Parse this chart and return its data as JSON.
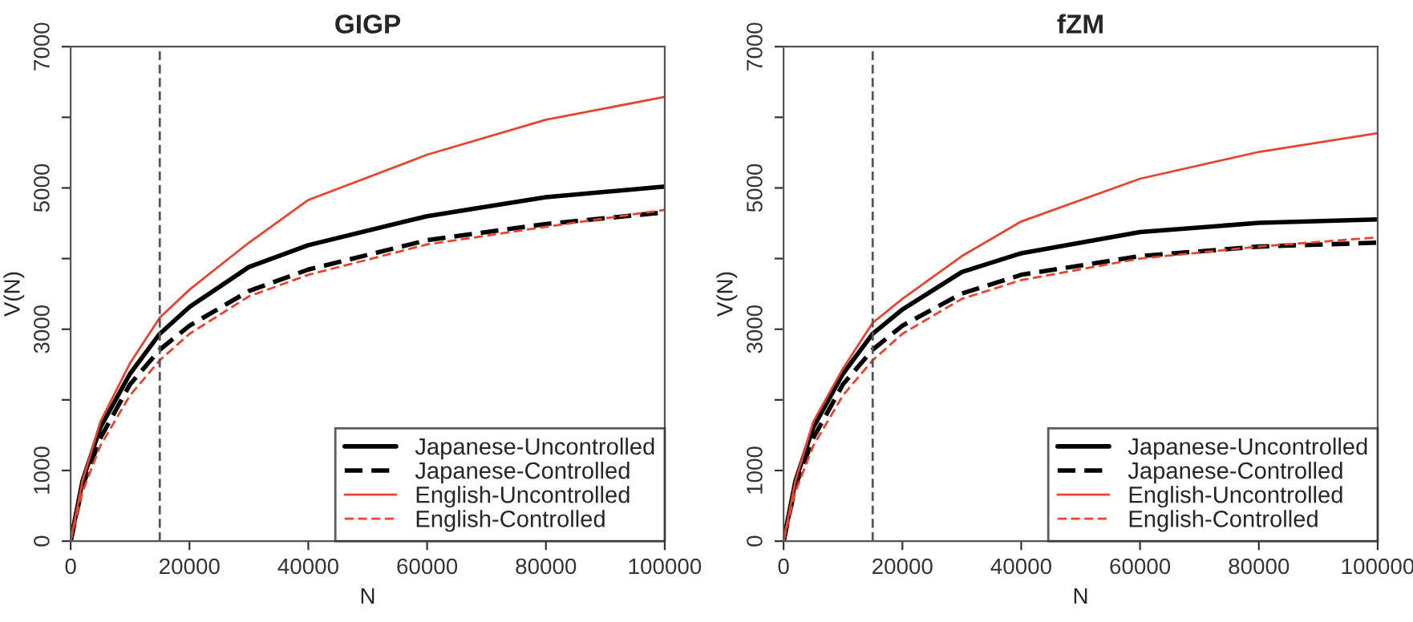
{
  "chart_data": [
    {
      "type": "line",
      "title": "GIGP",
      "xlabel": "N",
      "ylabel": "V(N)",
      "x": [
        0,
        2000,
        5000,
        10000,
        15000,
        20000,
        30000,
        40000,
        60000,
        80000,
        100000
      ],
      "series": [
        {
          "name": "Japanese-Uncontrolled",
          "color": "#000000",
          "line_style": "solid",
          "values": [
            0,
            855,
            1610,
            2370,
            2935,
            3315,
            3880,
            4190,
            4600,
            4870,
            5020
          ]
        },
        {
          "name": "Japanese-Controlled",
          "color": "#000000",
          "line_style": "dashed",
          "values": [
            0,
            780,
            1460,
            2220,
            2710,
            3050,
            3540,
            3845,
            4260,
            4490,
            4655
          ]
        },
        {
          "name": "English-Uncontrolled",
          "color": "#e8432f",
          "line_style": "solid",
          "values": [
            0,
            855,
            1690,
            2520,
            3165,
            3560,
            4225,
            4830,
            5470,
            5965,
            6290
          ]
        },
        {
          "name": "English-Controlled",
          "color": "#e8432f",
          "line_style": "dashed",
          "values": [
            0,
            700,
            1350,
            2065,
            2560,
            2935,
            3465,
            3770,
            4200,
            4450,
            4690
          ]
        }
      ],
      "xlim": [
        0,
        100000
      ],
      "ylim": [
        0,
        7000
      ],
      "xticks": [
        0,
        20000,
        40000,
        60000,
        80000,
        100000
      ],
      "yticks": [
        0,
        1000,
        {
          "value": 2000,
          "label": null
        },
        3000,
        {
          "value": 4000,
          "label": null
        },
        5000,
        {
          "value": 6000,
          "label": null
        },
        7000
      ],
      "ref_lines": [
        {
          "axis": "x",
          "value": 15000,
          "label": null,
          "color": "#555555",
          "line_style": "dashed"
        }
      ],
      "legend": "bottom right",
      "grid": false
    },
    {
      "type": "line",
      "title": "fZM",
      "xlabel": "N",
      "ylabel": "V(N)",
      "x": [
        0,
        2000,
        5000,
        10000,
        15000,
        20000,
        30000,
        40000,
        60000,
        80000,
        100000
      ],
      "series": [
        {
          "name": "Japanese-Uncontrolled",
          "color": "#000000",
          "line_style": "solid",
          "values": [
            0,
            855,
            1610,
            2370,
            2935,
            3280,
            3810,
            4075,
            4375,
            4505,
            4555
          ]
        },
        {
          "name": "Japanese-Controlled",
          "color": "#000000",
          "line_style": "dashed",
          "values": [
            0,
            780,
            1460,
            2220,
            2710,
            3050,
            3505,
            3770,
            4035,
            4170,
            4225
          ]
        },
        {
          "name": "English-Uncontrolled",
          "color": "#e8432f",
          "line_style": "solid",
          "values": [
            0,
            855,
            1690,
            2445,
            3090,
            3430,
            4035,
            4525,
            5130,
            5510,
            5775
          ]
        },
        {
          "name": "English-Controlled",
          "color": "#e8432f",
          "line_style": "dashed",
          "values": [
            0,
            700,
            1350,
            2065,
            2560,
            2935,
            3430,
            3695,
            4000,
            4170,
            4300
          ]
        }
      ],
      "xlim": [
        0,
        100000
      ],
      "ylim": [
        0,
        7000
      ],
      "xticks": [
        0,
        20000,
        40000,
        60000,
        80000,
        100000
      ],
      "yticks": [
        0,
        1000,
        {
          "value": 2000,
          "label": null
        },
        3000,
        {
          "value": 4000,
          "label": null
        },
        5000,
        {
          "value": 6000,
          "label": null
        },
        7000
      ],
      "ref_lines": [
        {
          "axis": "x",
          "value": 15000,
          "label": null,
          "color": "#555555",
          "line_style": "dashed"
        }
      ],
      "legend": "bottom right",
      "grid": false
    }
  ]
}
